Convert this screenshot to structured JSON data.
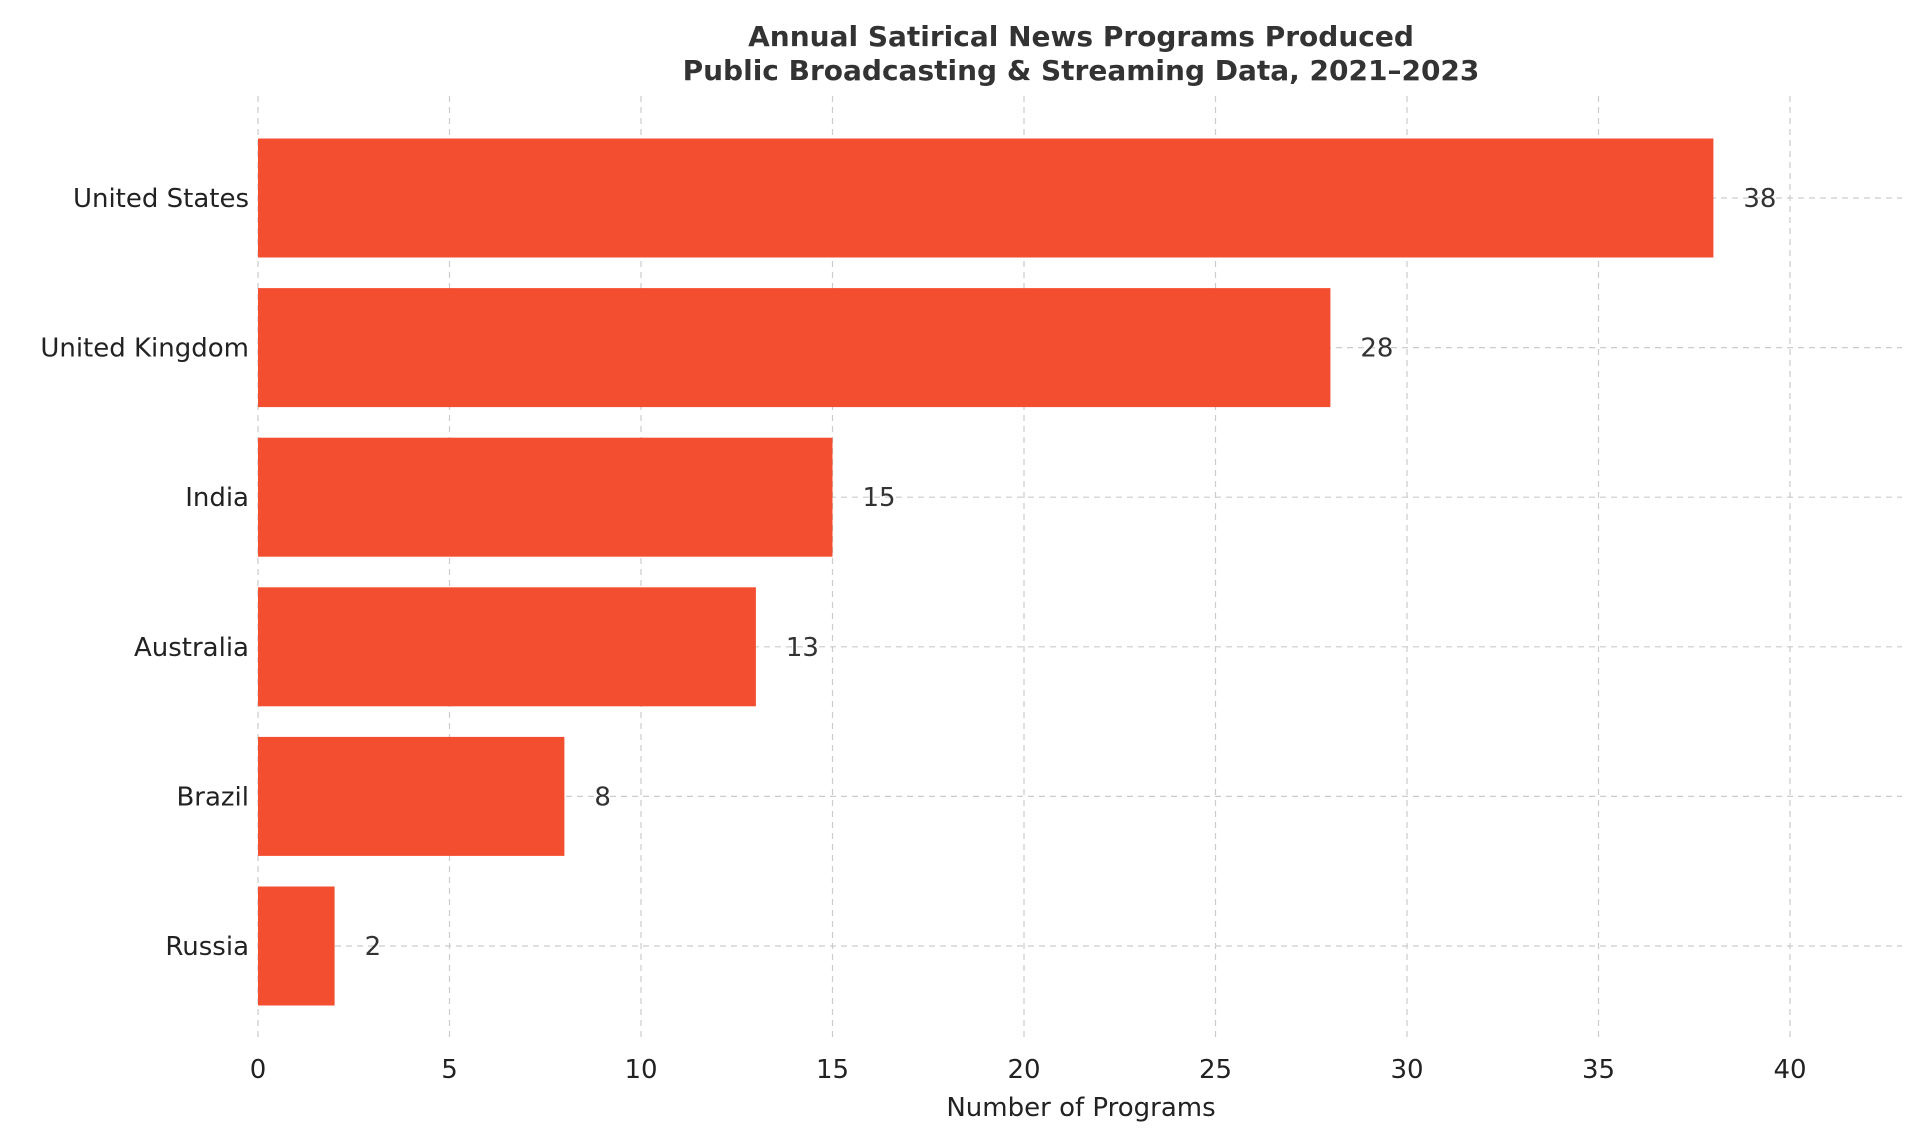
{
  "chart_data": {
    "type": "bar",
    "orientation": "horizontal",
    "title": "Annual Satirical News Programs Produced",
    "subtitle": "Public Broadcasting & Streaming Data, 2021–2023",
    "xlabel": "Number of Programs",
    "ylabel": "",
    "categories": [
      "United States",
      "United Kingdom",
      "India",
      "Australia",
      "Brazil",
      "Russia"
    ],
    "values": [
      38,
      28,
      15,
      13,
      8,
      2
    ],
    "data_labels": [
      "38",
      "28",
      "15",
      "13",
      "8",
      "2"
    ],
    "xlim": [
      0,
      43
    ],
    "xticks": [
      0,
      5,
      10,
      15,
      20,
      25,
      30,
      35,
      40
    ],
    "xtick_labels": [
      "0",
      "5",
      "10",
      "15",
      "20",
      "25",
      "30",
      "35",
      "40"
    ],
    "grid": true,
    "grid_style": "dashed",
    "legend": "none",
    "bar_color": "#F44E30",
    "grid_color": "#cccccc",
    "text_color": "#333333"
  }
}
